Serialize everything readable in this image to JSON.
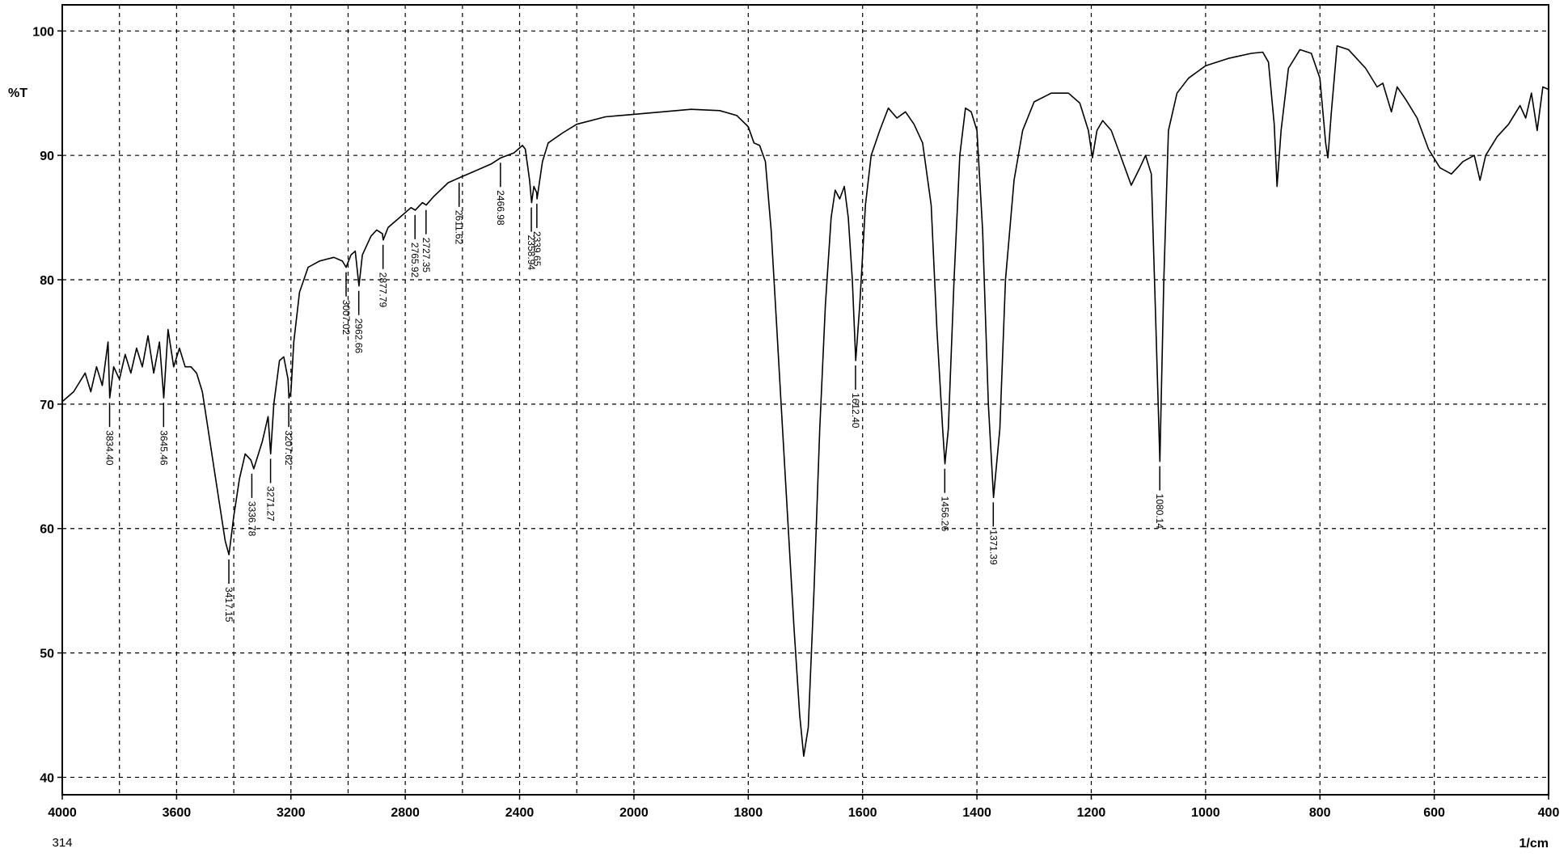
{
  "chart_data": {
    "type": "line",
    "y_label": "%T",
    "x_label": "1/cm",
    "x_start_note": "314",
    "xlim": [
      4000,
      400
    ],
    "x_scale_break": 2000,
    "xticks": [
      4000,
      3600,
      3200,
      2800,
      2400,
      2000,
      1800,
      1600,
      1400,
      1200,
      1000,
      800,
      600,
      400
    ],
    "x_minor_grid": [
      3800,
      3400,
      3000,
      2600,
      2200
    ],
    "ylim": [
      38.6,
      102.1
    ],
    "yticks": [
      40,
      50,
      60,
      70,
      80,
      90,
      100
    ],
    "grid": true,
    "series": [
      {
        "color": "#000000",
        "x": [
          4000,
          3960,
          3920,
          3900,
          3880,
          3860,
          3840,
          3834,
          3820,
          3800,
          3780,
          3760,
          3740,
          3720,
          3700,
          3680,
          3660,
          3645,
          3630,
          3610,
          3590,
          3570,
          3550,
          3530,
          3510,
          3490,
          3470,
          3450,
          3430,
          3417,
          3400,
          3380,
          3360,
          3340,
          3330,
          3300,
          3280,
          3271,
          3260,
          3240,
          3225,
          3210,
          3207,
          3200,
          3190,
          3170,
          3140,
          3100,
          3050,
          3020,
          3007,
          2990,
          2975,
          2962,
          2950,
          2920,
          2900,
          2880,
          2877,
          2860,
          2820,
          2780,
          2765,
          2740,
          2727,
          2700,
          2650,
          2611,
          2550,
          2500,
          2466,
          2420,
          2390,
          2380,
          2365,
          2358,
          2350,
          2340,
          2339,
          2320,
          2300,
          2250,
          2200,
          2100,
          2000,
          1950,
          1900,
          1850,
          1820,
          1800,
          1790,
          1780,
          1770,
          1760,
          1750,
          1740,
          1730,
          1720,
          1710,
          1703,
          1695,
          1685,
          1675,
          1665,
          1655,
          1648,
          1640,
          1632,
          1625,
          1618,
          1612,
          1605,
          1595,
          1585,
          1570,
          1555,
          1540,
          1525,
          1510,
          1495,
          1480,
          1470,
          1460,
          1456,
          1450,
          1440,
          1430,
          1420,
          1410,
          1400,
          1390,
          1380,
          1371,
          1360,
          1350,
          1335,
          1320,
          1300,
          1270,
          1240,
          1220,
          1205,
          1198,
          1190,
          1180,
          1165,
          1145,
          1130,
          1115,
          1105,
          1095,
          1088,
          1080,
          1073,
          1065,
          1050,
          1030,
          1000,
          960,
          920,
          900,
          890,
          880,
          875,
          868,
          855,
          835,
          815,
          800,
          790,
          786,
          780,
          770,
          750,
          720,
          700,
          690,
          675,
          665,
          650,
          630,
          610,
          590,
          570,
          550,
          530,
          520,
          510,
          490,
          470,
          450,
          440,
          430,
          420,
          410,
          400
        ],
        "values": [
          70.2,
          71,
          72.5,
          71,
          73,
          71.5,
          75,
          70.5,
          73,
          72,
          74,
          72.5,
          74.5,
          73,
          75.5,
          72.5,
          75,
          70.5,
          76,
          73,
          74.5,
          73,
          73,
          72.5,
          71,
          68,
          65,
          62,
          59,
          57.9,
          61,
          64,
          66,
          65.5,
          64.8,
          67,
          69,
          66,
          70,
          73.5,
          73.8,
          72,
          70.5,
          71,
          75,
          79,
          81,
          81.5,
          81.8,
          81.5,
          81,
          82,
          82.3,
          79.5,
          82,
          83.5,
          84,
          83.7,
          83.2,
          84.2,
          85,
          85.8,
          85.6,
          86.2,
          86,
          86.7,
          87.8,
          88.2,
          88.8,
          89.3,
          89.8,
          90.2,
          90.8,
          90.5,
          88,
          86.2,
          87.5,
          87,
          86.5,
          89.5,
          91,
          91.8,
          92.5,
          93.1,
          93.3,
          93.5,
          93.7,
          93.6,
          93.2,
          92.3,
          91,
          90.8,
          89.5,
          84,
          76,
          68,
          60,
          52,
          45,
          41.7,
          44,
          55,
          68,
          78,
          85,
          87.2,
          86.5,
          87.5,
          85,
          80,
          73.5,
          78,
          86,
          90,
          92,
          93.8,
          93,
          93.5,
          92.5,
          91,
          86,
          76,
          68,
          65.2,
          68,
          80,
          90,
          93.8,
          93.5,
          92,
          84,
          70,
          62.5,
          68,
          80,
          88,
          92,
          94.3,
          95,
          95,
          94.2,
          92,
          89.8,
          92,
          92.8,
          92,
          89.5,
          87.6,
          89,
          90,
          88.5,
          78,
          65.4,
          80,
          92,
          95,
          96.2,
          97.2,
          97.8,
          98.2,
          98.3,
          97.5,
          92.5,
          87.5,
          92,
          97,
          98.5,
          98.2,
          96.2,
          91,
          89.8,
          93.5,
          98.8,
          98.5,
          97,
          95.5,
          95.8,
          93.5,
          95.5,
          94.5,
          93,
          90.5,
          89,
          88.5,
          89.5,
          90,
          88,
          90,
          91.5,
          92.5,
          94,
          93,
          95,
          92,
          95.5,
          95.3
        ]
      }
    ],
    "peaks": [
      {
        "value": 3834.4,
        "label": "3834.40",
        "y": 70.5
      },
      {
        "value": 3645.46,
        "label": "3645.46",
        "y": 70.5
      },
      {
        "value": 3417.15,
        "label": "3417.15",
        "y": 57.9
      },
      {
        "value": 3336.78,
        "label": "3336.78",
        "y": 64.8
      },
      {
        "value": 3271.27,
        "label": "3271.27",
        "y": 66
      },
      {
        "value": 3207.62,
        "label": "3207.62",
        "y": 70.5
      },
      {
        "value": 3007.02,
        "label": "3007.02",
        "y": 81
      },
      {
        "value": 2962.66,
        "label": "2962.66",
        "y": 79.5
      },
      {
        "value": 2877.79,
        "label": "2877.79",
        "y": 83.2
      },
      {
        "value": 2765.92,
        "label": "2765.92",
        "y": 85.6
      },
      {
        "value": 2727.35,
        "label": "2727.35",
        "y": 86
      },
      {
        "value": 2611.62,
        "label": "2611.62",
        "y": 88.2
      },
      {
        "value": 2466.98,
        "label": "2466.98",
        "y": 89.8
      },
      {
        "value": 2358.94,
        "label": "2358.94",
        "y": 86.2
      },
      {
        "value": 2339.65,
        "label": "2339.65",
        "y": 86.5
      },
      {
        "value": 1612.4,
        "label": "1612.40",
        "y": 73.5
      },
      {
        "value": 1456.26,
        "label": "1456.26",
        "y": 65.2
      },
      {
        "value": 1371.39,
        "label": "1371.39",
        "y": 62.5
      },
      {
        "value": 1080.14,
        "label": "1080.14",
        "y": 65.4
      }
    ]
  }
}
